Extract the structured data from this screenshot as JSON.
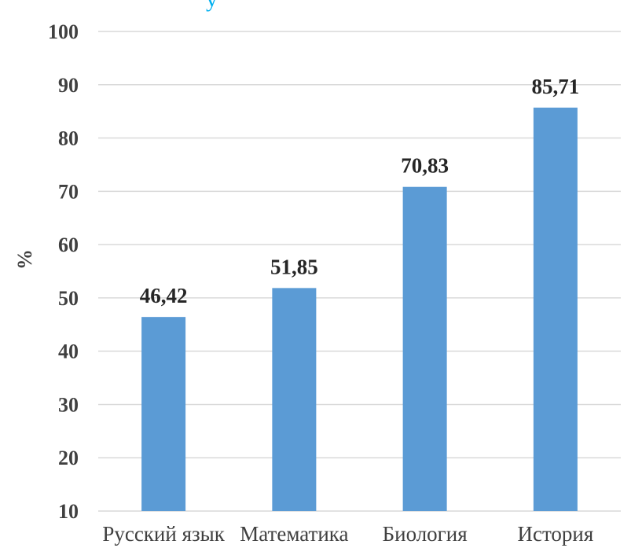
{
  "chart_data": {
    "type": "bar",
    "title_fragment": "у",
    "ylabel": "%",
    "xlabel": "",
    "categories": [
      "Русский язык",
      "Математика",
      "Биология",
      "История"
    ],
    "values": [
      46.42,
      51.85,
      70.83,
      85.71
    ],
    "value_labels": [
      "46,42",
      "51,85",
      "70,83",
      "85,71"
    ],
    "ylim": [
      10,
      100
    ],
    "yticks": [
      10,
      20,
      30,
      40,
      50,
      60,
      70,
      80,
      90,
      100
    ],
    "grid": true,
    "legend": "none",
    "bar_color": "#5b9bd5",
    "title_color": "#00b0f0"
  }
}
